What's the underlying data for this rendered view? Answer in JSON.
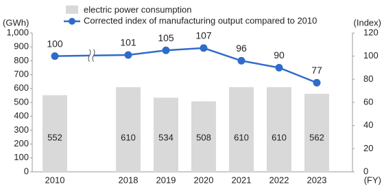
{
  "chart_data": {
    "type": "bar-line",
    "y_label": "(GWh)",
    "y2_label": "(Index)",
    "x_label": "(FY)",
    "categories": [
      "2010",
      "2018",
      "2019",
      "2020",
      "2021",
      "2022",
      "2023"
    ],
    "series": [
      {
        "name": "electric power consumption",
        "type": "bar",
        "color": "#d9d9d9",
        "values": [
          552,
          610,
          534,
          508,
          610,
          610,
          562
        ]
      },
      {
        "name": "Corrected index of manufacturing output compared to 2010",
        "type": "line",
        "axis": "y2",
        "color": "#2f6cc8",
        "values": [
          100,
          101,
          105,
          107,
          96,
          90,
          77
        ]
      }
    ],
    "ylim": [
      0,
      1000
    ],
    "yticks": [
      0,
      100,
      200,
      300,
      400,
      500,
      600,
      700,
      800,
      900,
      {
        "value": 1000,
        "label": "1,000"
      }
    ],
    "y2lim": [
      0,
      120
    ],
    "y2ticks": [
      0,
      20,
      40,
      60,
      80,
      100,
      120
    ]
  }
}
